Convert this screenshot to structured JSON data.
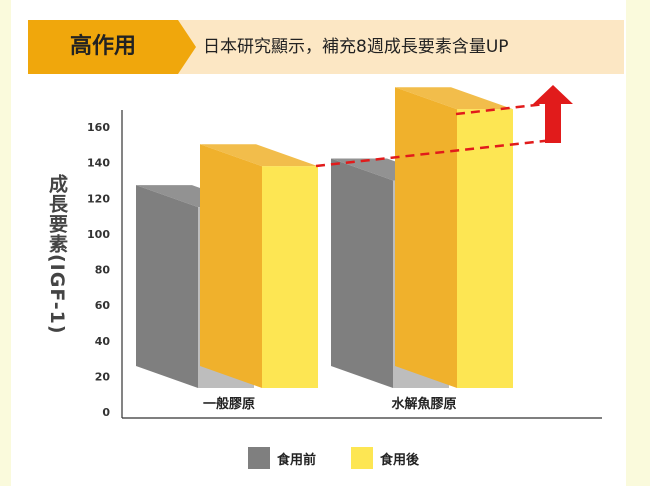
{
  "header": {
    "badge": "高作用",
    "text": "日本研究顯示，補充8週成長要素含量UP"
  },
  "colors": {
    "before_front": "#bdbdbd",
    "before_side": "#7f7f7f",
    "after_front": "#fde653",
    "after_side": "#f0b12c",
    "trend": "#e11b1b"
  },
  "chart_data": {
    "type": "bar",
    "title": "",
    "xlabel": "",
    "ylabel": "成長要素(IGF-1)",
    "ylim": [
      0,
      160
    ],
    "yticks": [
      0,
      20,
      40,
      60,
      80,
      100,
      120,
      140,
      160
    ],
    "categories": [
      "一般膠原",
      "水解魚膠原"
    ],
    "series": [
      {
        "name": "食用前",
        "values": [
          115,
          130
        ]
      },
      {
        "name": "食用後",
        "values": [
          138,
          170
        ]
      }
    ],
    "legend_position": "bottom",
    "grid": false
  }
}
